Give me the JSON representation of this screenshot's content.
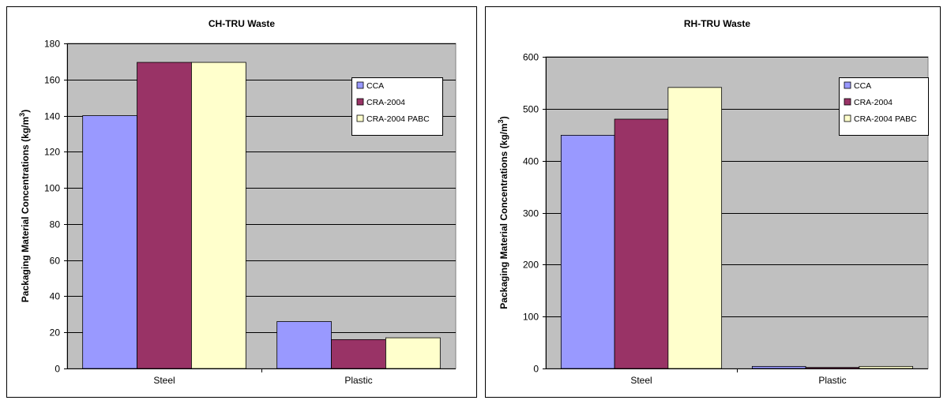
{
  "chart_data": [
    {
      "type": "bar",
      "title": "CH-TRU Waste",
      "ylabel": "Packaging Material Concentrations (kg/m",
      "ylabel_superscript": "3",
      "ylabel_suffix": ")",
      "xlabel": "",
      "categories": [
        "Steel",
        "Plastic"
      ],
      "ylim": [
        0,
        180
      ],
      "yticks": [
        0,
        20,
        40,
        60,
        80,
        100,
        120,
        140,
        160,
        180
      ],
      "grid": true,
      "legend_position": "top-right",
      "series": [
        {
          "name": "CCA",
          "color": "#9999ff",
          "values": [
            140,
            26
          ]
        },
        {
          "name": "CRA-2004",
          "color": "#993366",
          "values": [
            169.5,
            16
          ]
        },
        {
          "name": "CRA-2004 PABC",
          "color": "#ffffcc",
          "values": [
            169.5,
            17
          ]
        }
      ]
    },
    {
      "type": "bar",
      "title": "RH-TRU Waste",
      "ylabel": "Packaging Material Concentrations (kg/m",
      "ylabel_superscript": "3",
      "ylabel_suffix": ")",
      "xlabel": "",
      "categories": [
        "Steel",
        "Plastic"
      ],
      "ylim": [
        0,
        600
      ],
      "yticks": [
        0,
        100,
        200,
        300,
        400,
        500,
        600
      ],
      "grid": true,
      "legend_position": "top-right",
      "series": [
        {
          "name": "CCA",
          "color": "#9999ff",
          "values": [
            449,
            4
          ]
        },
        {
          "name": "CRA-2004",
          "color": "#993366",
          "values": [
            480,
            2
          ]
        },
        {
          "name": "CRA-2004 PABC",
          "color": "#ffffcc",
          "values": [
            541,
            4
          ]
        }
      ]
    }
  ]
}
